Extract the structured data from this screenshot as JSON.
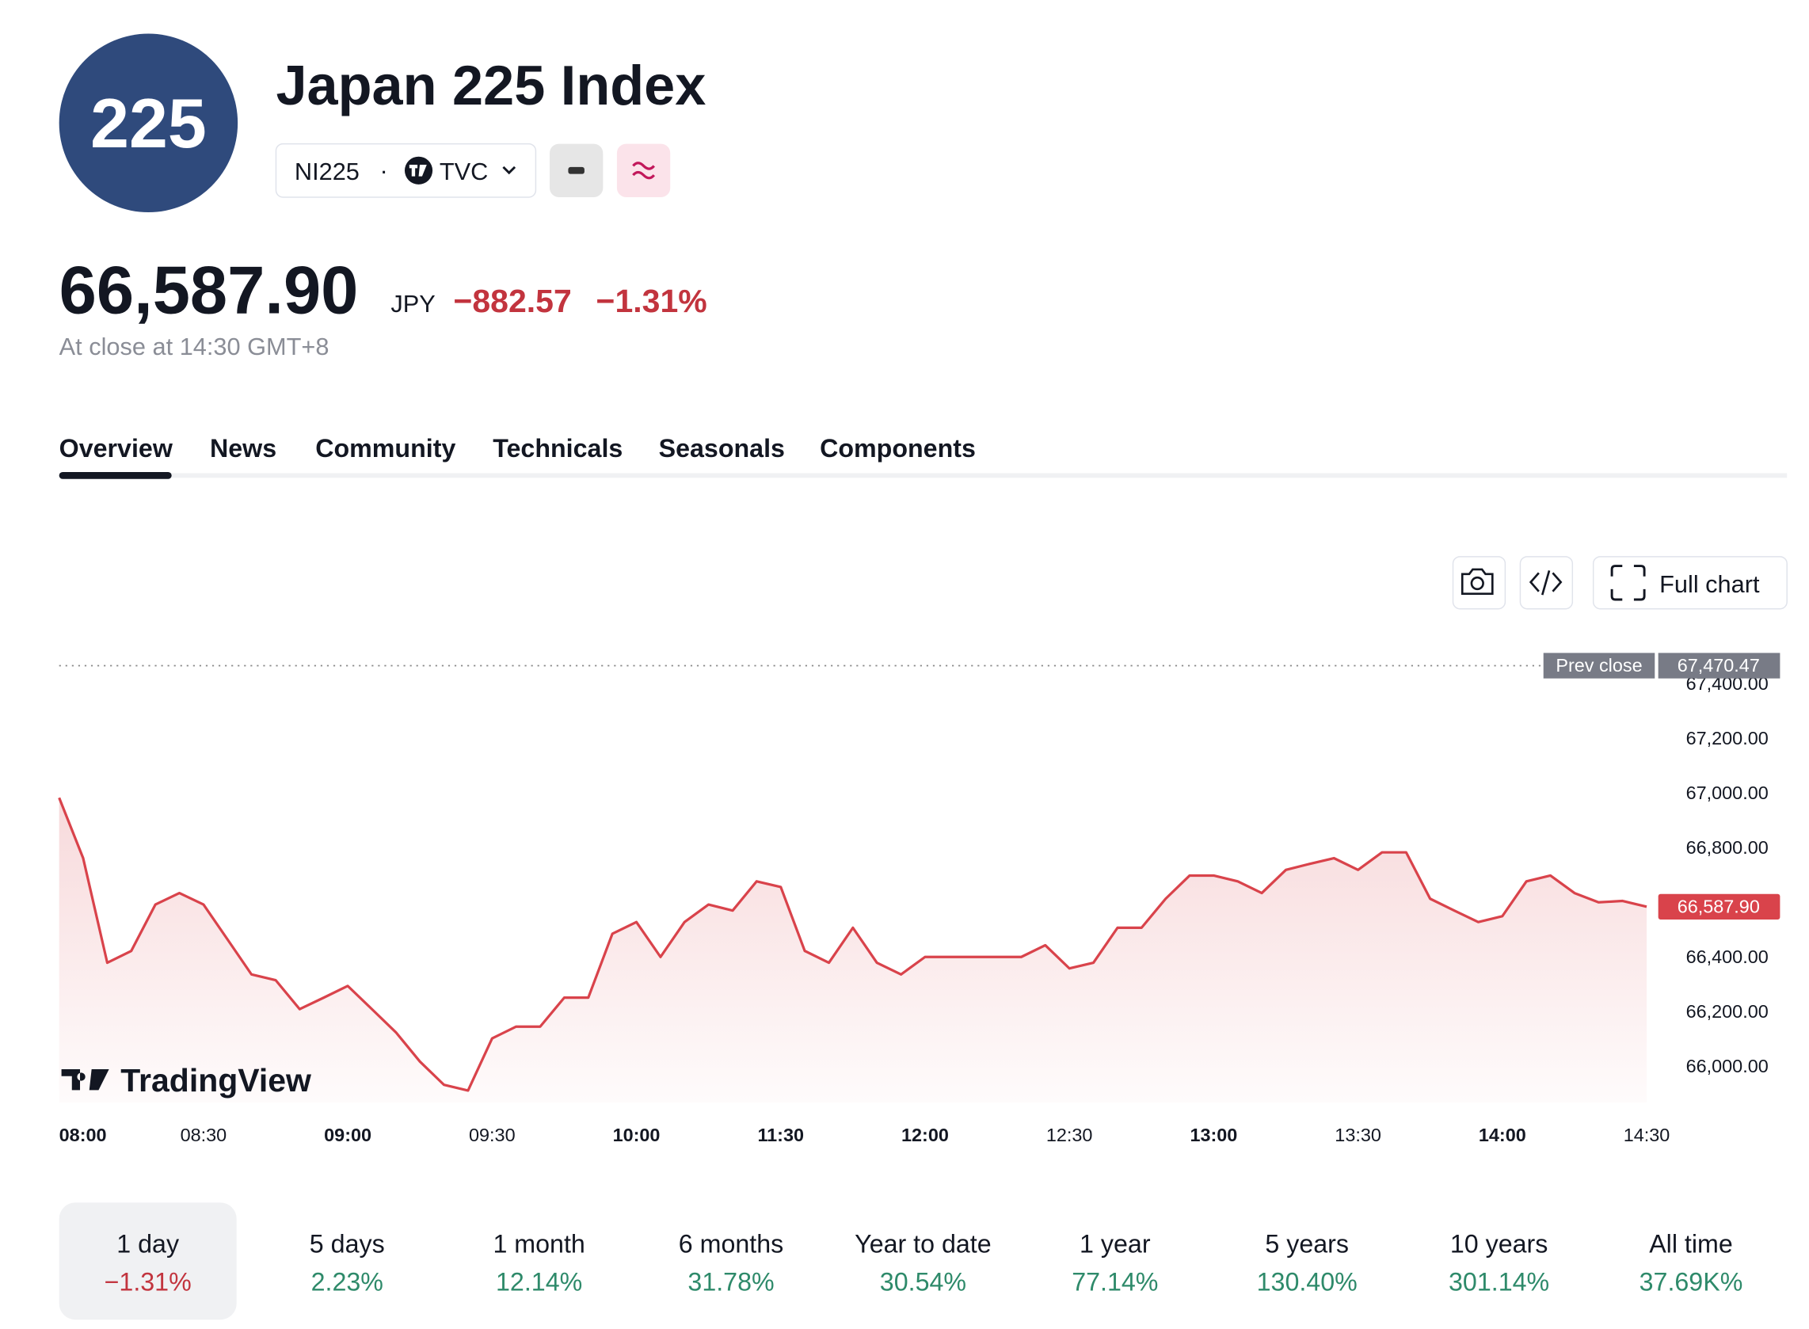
{
  "header": {
    "logo": "225",
    "title": "Japan 225 Index",
    "symbol": "NI225",
    "separator": "·",
    "exchange": "TVC"
  },
  "quote": {
    "price": "66,587.90",
    "currency": "JPY",
    "change": "−882.57",
    "change_percent": "−1.31%",
    "status": "At close at 14:30 GMT+8"
  },
  "tabs": [
    "Overview",
    "News",
    "Community",
    "Technicals",
    "Seasonals",
    "Components"
  ],
  "toolbar": {
    "full_chart": "Full chart"
  },
  "chart_data": {
    "type": "line",
    "watermark": "TradingView",
    "x": [
      "08:00",
      "08:05",
      "08:10",
      "08:15",
      "08:20",
      "08:25",
      "08:30",
      "08:35",
      "08:40",
      "08:45",
      "08:50",
      "08:55",
      "09:00",
      "09:05",
      "09:10",
      "09:15",
      "09:20",
      "09:25",
      "09:30",
      "09:35",
      "09:40",
      "09:45",
      "09:50",
      "09:55",
      "10:00",
      "10:05",
      "10:10",
      "10:15",
      "10:20",
      "10:25",
      "11:30",
      "11:35",
      "11:40",
      "11:45",
      "11:50",
      "11:55",
      "12:00",
      "12:05",
      "12:10",
      "12:15",
      "12:20",
      "12:25",
      "12:30",
      "12:35",
      "12:40",
      "12:45",
      "12:50",
      "12:55",
      "13:00",
      "13:05",
      "13:10",
      "13:15",
      "13:20",
      "13:25",
      "13:30",
      "13:35",
      "13:40",
      "13:45",
      "13:50",
      "13:55",
      "14:00",
      "14:05",
      "14:10",
      "14:15",
      "14:20",
      "14:25",
      "14:30"
    ],
    "series": [
      {
        "name": "NI225",
        "color": "#d9434b",
        "values": [
          66987,
          66766,
          66383,
          66426,
          66596,
          66638,
          66596,
          66468,
          66340,
          66319,
          66213,
          66255,
          66298,
          66213,
          66128,
          66021,
          65936,
          65915,
          66106,
          66149,
          66149,
          66255,
          66255,
          66489,
          66532,
          66404,
          66532,
          66596,
          66574,
          66681,
          66660,
          66426,
          66383,
          66511,
          66383,
          66340,
          66404,
          66404,
          66404,
          66404,
          66404,
          66447,
          66362,
          66383,
          66511,
          66511,
          66617,
          66702,
          66702,
          66681,
          66638,
          66723,
          66745,
          66766,
          66723,
          66787,
          66787,
          66617,
          66574,
          66532,
          66553,
          66681,
          66702,
          66638,
          66604,
          66609,
          66587.9
        ]
      }
    ],
    "current_price_label": "66,587.90",
    "prev_close": {
      "name": "Prev close",
      "value": 67470.47,
      "label": "67,470.47"
    },
    "ylim": [
      65870,
      67530
    ],
    "yticks": [
      {
        "value": 66000,
        "label": "66,000.00"
      },
      {
        "value": 66200,
        "label": "66,200.00"
      },
      {
        "value": 66400,
        "label": "66,400.00"
      },
      {
        "value": 66600,
        "label": "66,600.00"
      },
      {
        "value": 66800,
        "label": "66,800.00"
      },
      {
        "value": 67000,
        "label": "67,000.00"
      },
      {
        "value": 67200,
        "label": "67,200.00"
      },
      {
        "value": 67400,
        "label": "67,400.00"
      }
    ],
    "xticks": [
      "08:00",
      "08:30",
      "09:00",
      "09:30",
      "10:00",
      "11:30",
      "12:00",
      "12:30",
      "13:00",
      "13:30",
      "14:00",
      "14:30"
    ],
    "grid": false
  },
  "periods": [
    {
      "label": "1 day",
      "value": "−1.31%"
    },
    {
      "label": "5 days",
      "value": "2.23%"
    },
    {
      "label": "1 month",
      "value": "12.14%"
    },
    {
      "label": "6 months",
      "value": "31.78%"
    },
    {
      "label": "Year to date",
      "value": "30.54%"
    },
    {
      "label": "1 year",
      "value": "77.14%"
    },
    {
      "label": "5 years",
      "value": "130.40%"
    },
    {
      "label": "10 years",
      "value": "301.14%"
    },
    {
      "label": "All time",
      "value": "37.69K%"
    }
  ]
}
